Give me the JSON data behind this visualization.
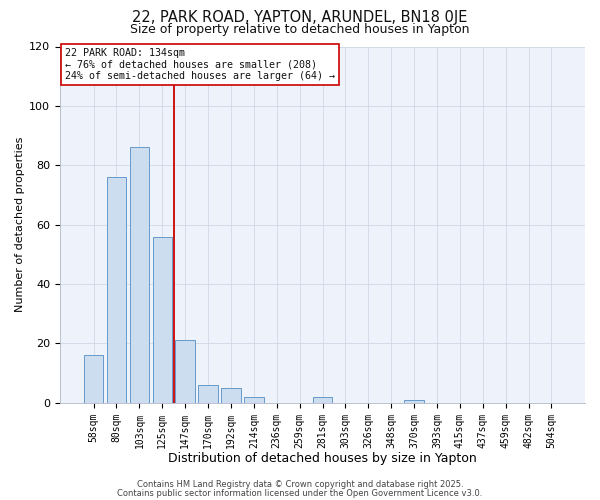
{
  "title": "22, PARK ROAD, YAPTON, ARUNDEL, BN18 0JE",
  "subtitle": "Size of property relative to detached houses in Yapton",
  "xlabel": "Distribution of detached houses by size in Yapton",
  "ylabel": "Number of detached properties",
  "bar_labels": [
    "58sqm",
    "80sqm",
    "103sqm",
    "125sqm",
    "147sqm",
    "170sqm",
    "192sqm",
    "214sqm",
    "236sqm",
    "259sqm",
    "281sqm",
    "303sqm",
    "326sqm",
    "348sqm",
    "370sqm",
    "393sqm",
    "415sqm",
    "437sqm",
    "459sqm",
    "482sqm",
    "504sqm"
  ],
  "bar_values": [
    16,
    76,
    86,
    56,
    21,
    6,
    5,
    2,
    0,
    0,
    2,
    0,
    0,
    0,
    1,
    0,
    0,
    0,
    0,
    0,
    0
  ],
  "bar_color": "#ccddf0",
  "bar_edge_color": "#6699cc",
  "vline_color": "#cc0000",
  "ylim": [
    0,
    120
  ],
  "yticks": [
    0,
    20,
    40,
    60,
    80,
    100,
    120
  ],
  "annotation_title": "22 PARK ROAD: 134sqm",
  "annotation_line1": "← 76% of detached houses are smaller (208)",
  "annotation_line2": "24% of semi-detached houses are larger (64) →",
  "footer1": "Contains HM Land Registry data © Crown copyright and database right 2025.",
  "footer2": "Contains public sector information licensed under the Open Government Licence v3.0.",
  "bg_color": "#eef2fa",
  "grid_color": "#d0d8e8"
}
